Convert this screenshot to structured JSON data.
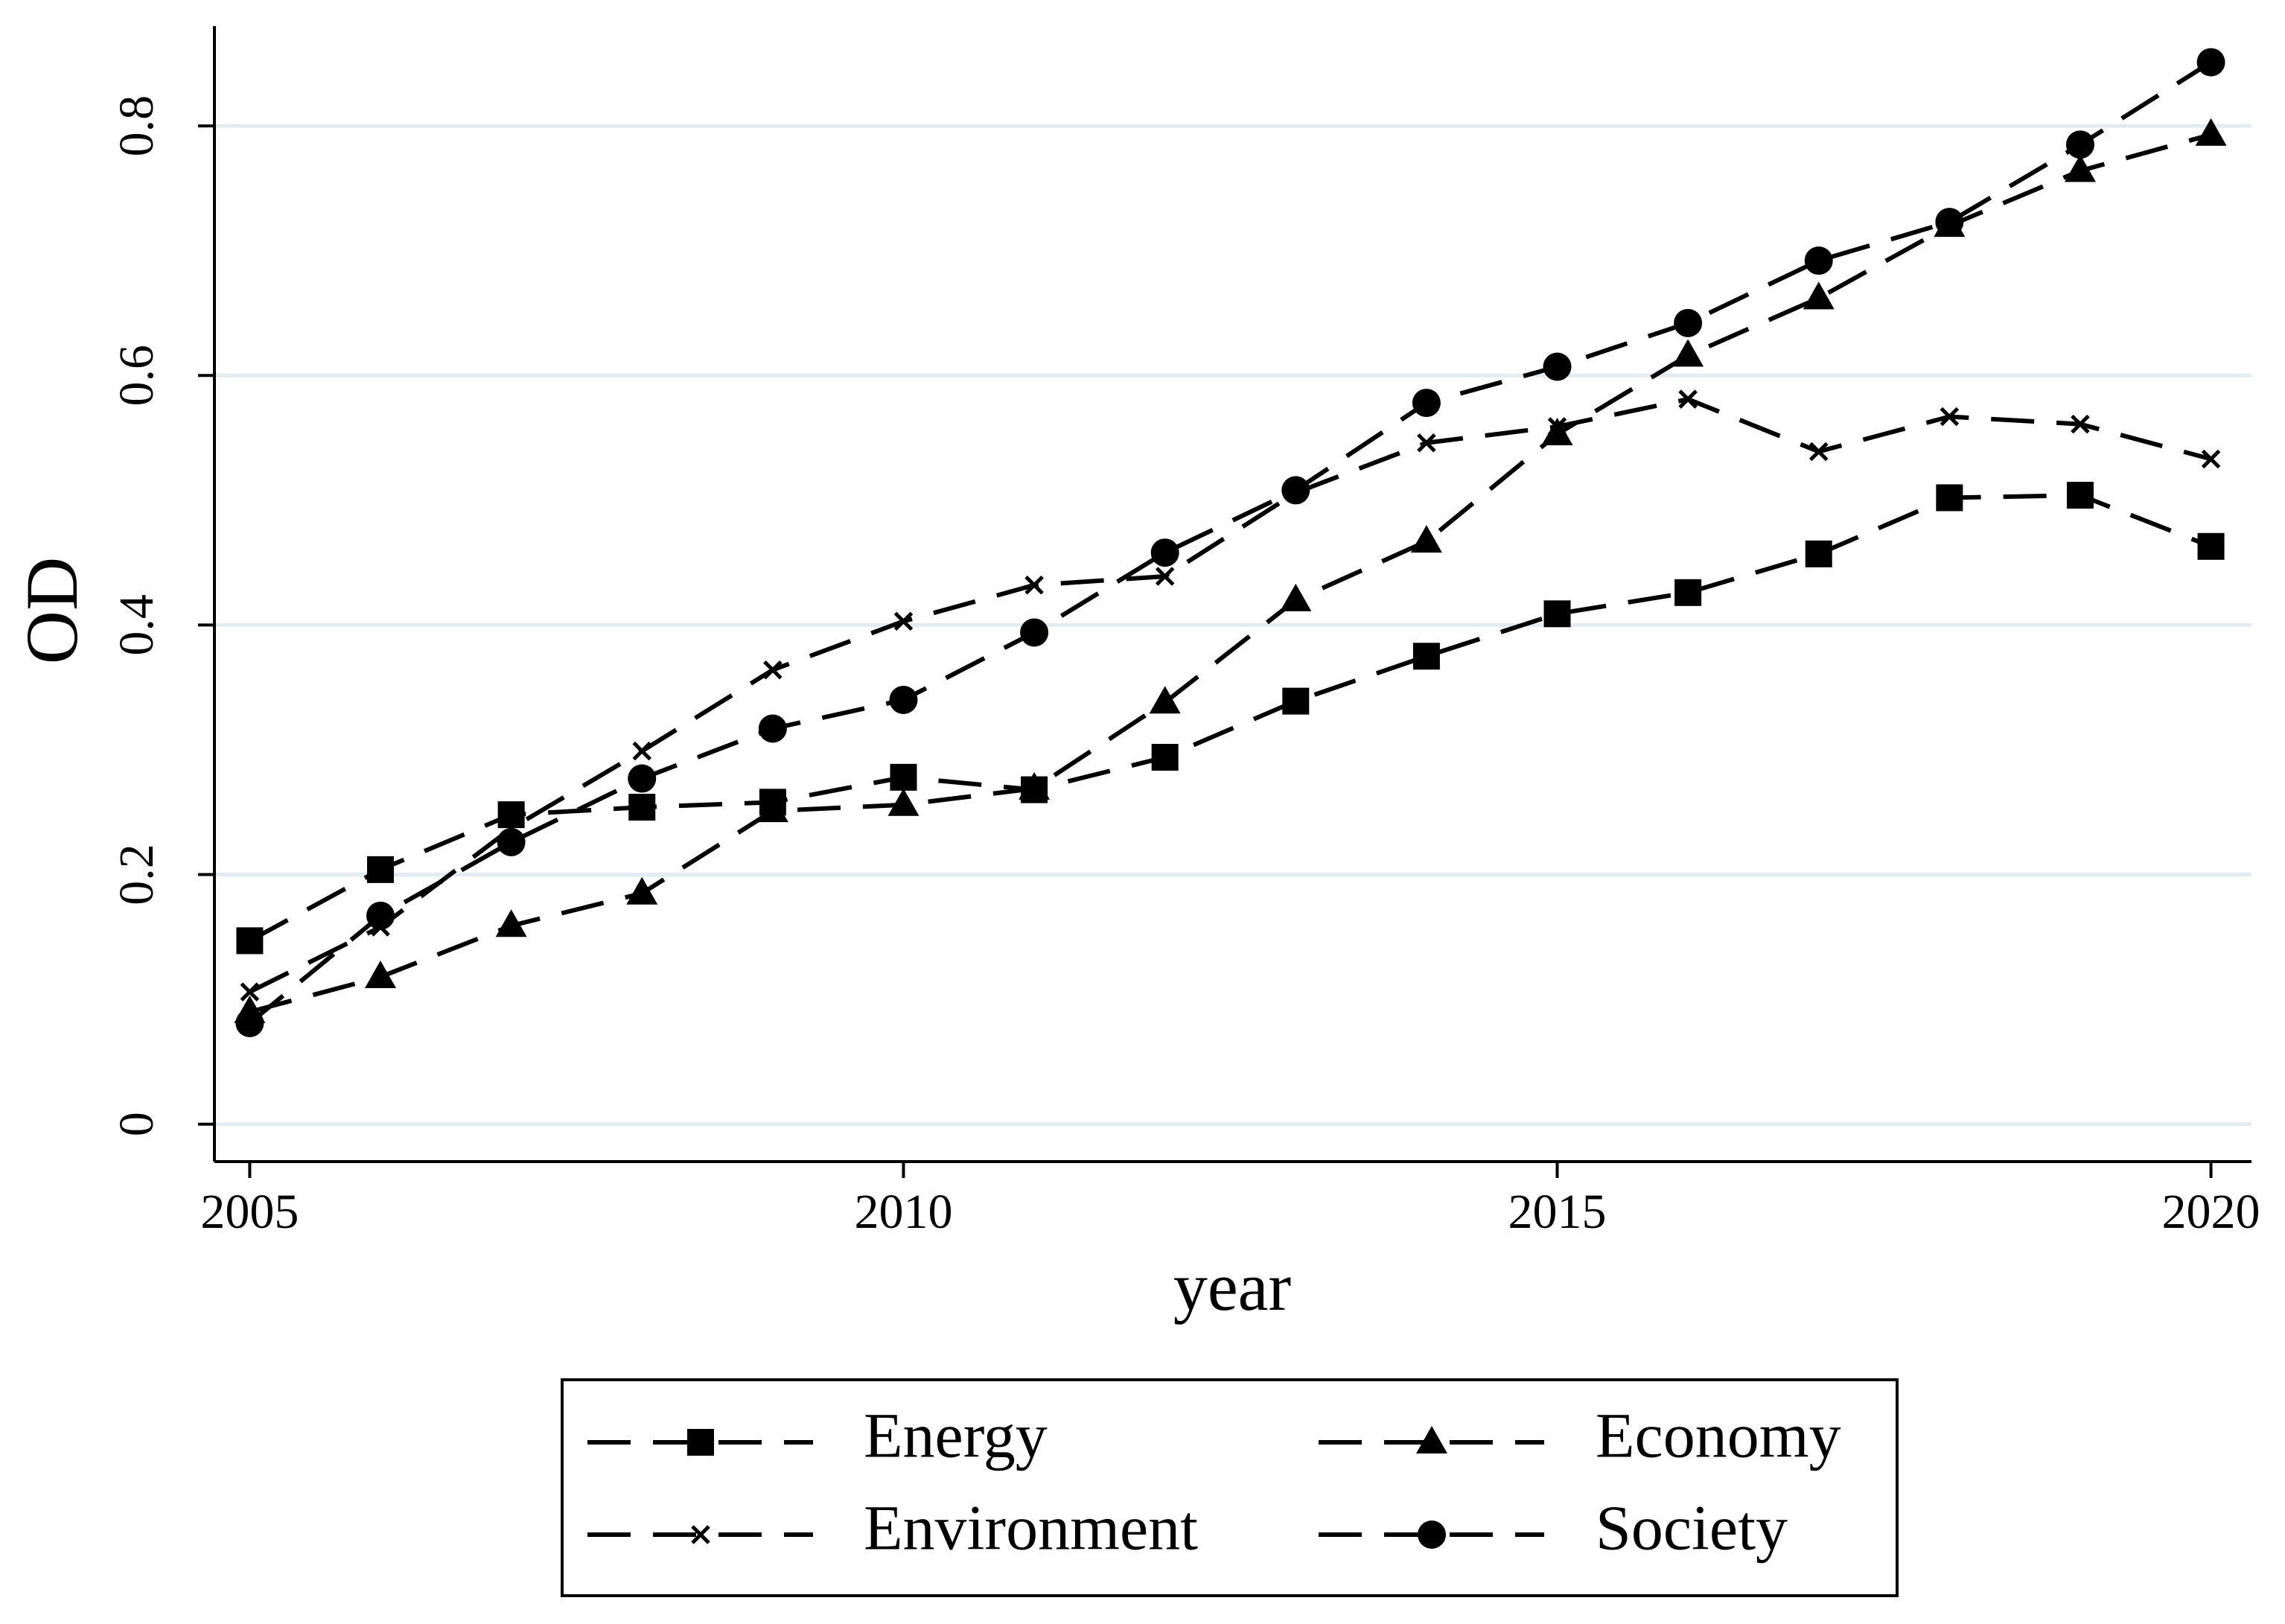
{
  "chart_data": {
    "type": "line",
    "x_label": "year",
    "y_label": "OD",
    "x": [
      2005,
      2006,
      2007,
      2008,
      2009,
      2010,
      2011,
      2012,
      2013,
      2014,
      2015,
      2016,
      2017,
      2018,
      2019,
      2020
    ],
    "series": [
      {
        "name": "Energy",
        "color": "#000000",
        "marker": "square",
        "values": [
          0.147,
          0.204,
          0.248,
          0.254,
          0.258,
          0.278,
          0.268,
          0.294,
          0.339,
          0.375,
          0.409,
          0.426,
          0.457,
          0.502,
          0.504,
          0.463
        ]
      },
      {
        "name": "Economy",
        "color": "#000000",
        "marker": "triangle",
        "values": [
          0.09,
          0.118,
          0.159,
          0.185,
          0.251,
          0.256,
          0.269,
          0.338,
          0.42,
          0.467,
          0.553,
          0.616,
          0.662,
          0.72,
          0.764,
          0.793
        ]
      },
      {
        "name": "Environment",
        "color": "#000000",
        "marker": "x",
        "values": [
          0.106,
          0.158,
          0.237,
          0.299,
          0.364,
          0.403,
          0.432,
          0.439,
          0.506,
          0.546,
          0.559,
          0.581,
          0.539,
          0.567,
          0.561,
          0.533
        ]
      },
      {
        "name": "Society",
        "color": "#000000",
        "marker": "circle",
        "values": [
          0.081,
          0.167,
          0.226,
          0.277,
          0.317,
          0.34,
          0.394,
          0.458,
          0.508,
          0.578,
          0.607,
          0.642,
          0.692,
          0.723,
          0.785,
          0.851
        ]
      }
    ],
    "xlim": [
      2004.73,
      2020.31
    ],
    "xticks": [
      2005,
      2010,
      2015,
      2020
    ],
    "ylim": [
      -0.03,
      0.88
    ],
    "yticks": [
      0,
      0.2,
      0.4,
      0.6,
      0.8
    ],
    "grid": true,
    "legend_position": "bottom"
  }
}
